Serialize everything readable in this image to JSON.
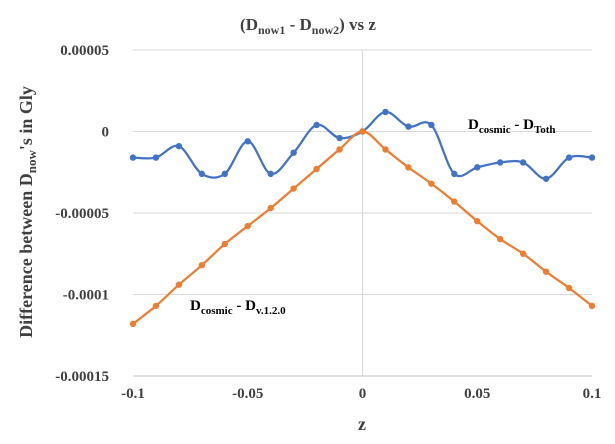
{
  "chart_data": {
    "type": "line",
    "title": {
      "main": "(D",
      "sub1": "now1",
      "mid": " - D",
      "sub2": "now2",
      "end": ") vs z"
    },
    "xlabel": "z",
    "ylabel": {
      "pre": "Difference between D",
      "sub": "now",
      "post": "'s in Gly"
    },
    "xlim": [
      -0.1,
      0.1
    ],
    "ylim": [
      -0.00015,
      5e-05
    ],
    "xticks": [
      -0.1,
      -0.05,
      0,
      0.05,
      0.1
    ],
    "xtick_labels": [
      "-0.1",
      "-0.05",
      "0",
      "0.05",
      "0.1"
    ],
    "yticks": [
      5e-05,
      0,
      -5e-05,
      -0.0001,
      -0.00015
    ],
    "ytick_labels": [
      "0.00005",
      "0",
      "-0.00005",
      "-0.0001",
      "-0.00015"
    ],
    "grid": "horizontal",
    "legend": "none",
    "series": [
      {
        "color": "#4472C4",
        "annotation": {
          "pre": "D",
          "sub1": "cosmic",
          "mid": " - D",
          "sub2": "Toth"
        },
        "x": [
          -0.1,
          -0.09,
          -0.08,
          -0.07,
          -0.06,
          -0.05,
          -0.04,
          -0.03,
          -0.02,
          -0.01,
          0,
          0.01,
          0.02,
          0.03,
          0.04,
          0.05,
          0.06,
          0.07,
          0.08,
          0.09,
          0.1
        ],
        "y": [
          -1.6e-05,
          -1.6e-05,
          -9e-06,
          -2.6e-05,
          -2.6e-05,
          -6e-06,
          -2.6e-05,
          -1.3e-05,
          4e-06,
          -4e-06,
          0,
          1.2e-05,
          3e-06,
          4e-06,
          -2.6e-05,
          -2.2e-05,
          -1.9e-05,
          -1.9e-05,
          -2.9e-05,
          -1.6e-05,
          -1.6e-05
        ]
      },
      {
        "color": "#ED7D31",
        "annotation": {
          "pre": "D",
          "sub1": "cosmic",
          "mid": " - D",
          "sub2": "v.1.2.0"
        },
        "x": [
          -0.1,
          -0.09,
          -0.08,
          -0.07,
          -0.06,
          -0.05,
          -0.04,
          -0.03,
          -0.02,
          -0.01,
          0,
          0.01,
          0.02,
          0.03,
          0.04,
          0.05,
          0.06,
          0.07,
          0.08,
          0.09,
          0.1
        ],
        "y": [
          -0.000118,
          -0.000107,
          -9.4e-05,
          -8.2e-05,
          -6.9e-05,
          -5.8e-05,
          -4.7e-05,
          -3.5e-05,
          -2.3e-05,
          -1.1e-05,
          0,
          -1.1e-05,
          -2.2e-05,
          -3.2e-05,
          -4.3e-05,
          -5.5e-05,
          -6.6e-05,
          -7.5e-05,
          -8.6e-05,
          -9.6e-05,
          -0.000107
        ]
      }
    ]
  }
}
